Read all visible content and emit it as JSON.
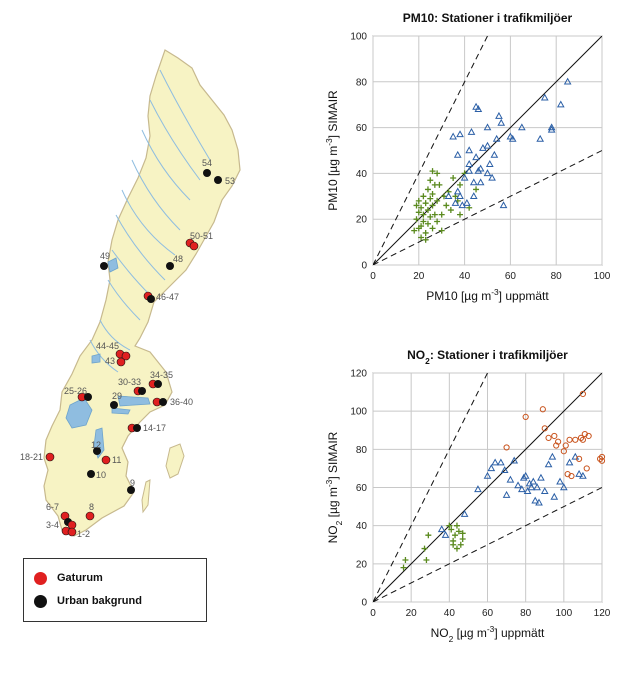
{
  "map": {
    "legend": {
      "items": [
        {
          "label": "Gaturum",
          "color": "#e02020"
        },
        {
          "label": "Urban bakgrund",
          "color": "#111111"
        }
      ]
    },
    "station_labels": [
      "54",
      "53",
      "50-51",
      "49",
      "48",
      "46-47",
      "44-45",
      "43",
      "34-35",
      "30-33",
      "25-26",
      "29",
      "36-40",
      "14-17",
      "12",
      "18-21",
      "11",
      "10",
      "9",
      "6-7",
      "8",
      "3-4",
      "1-2"
    ]
  },
  "chart_data": [
    {
      "type": "scatter",
      "title": "PM10: Stationer i trafikmiljöer",
      "xlabel": "PM10 [µg m-3] uppmätt",
      "ylabel": "PM10 [µg m-3] SIMAIR",
      "xlim": [
        0,
        100
      ],
      "ylim": [
        0,
        100
      ],
      "xticks": [
        0,
        20,
        40,
        60,
        80,
        100
      ],
      "yticks": [
        0,
        20,
        40,
        60,
        80,
        100
      ],
      "grid": true,
      "reference_lines": [
        {
          "style": "solid",
          "slope": 1
        },
        {
          "style": "dashed",
          "slope": 2
        },
        {
          "style": "dashed",
          "slope": 0.5
        }
      ],
      "series": [
        {
          "marker": "plus",
          "color": "#5a8a1e",
          "points": [
            [
              18,
              15
            ],
            [
              19,
              20
            ],
            [
              20,
              23
            ],
            [
              20,
              28
            ],
            [
              21,
              17
            ],
            [
              21,
              25
            ],
            [
              22,
              19
            ],
            [
              22,
              22
            ],
            [
              22,
              30
            ],
            [
              23,
              14
            ],
            [
              23,
              27
            ],
            [
              24,
              18
            ],
            [
              24,
              24
            ],
            [
              24,
              33
            ],
            [
              25,
              21
            ],
            [
              25,
              29
            ],
            [
              25,
              37
            ],
            [
              26,
              16
            ],
            [
              26,
              26
            ],
            [
              26,
              31
            ],
            [
              27,
              22
            ],
            [
              27,
              35
            ],
            [
              28,
              19
            ],
            [
              28,
              28
            ],
            [
              28,
              40
            ],
            [
              30,
              22
            ],
            [
              31,
              30
            ],
            [
              32,
              26
            ],
            [
              33,
              32
            ],
            [
              34,
              24
            ],
            [
              35,
              38
            ],
            [
              36,
              30
            ],
            [
              37,
              28
            ],
            [
              38,
              35
            ],
            [
              40,
              40
            ],
            [
              42,
              25
            ],
            [
              45,
              33
            ],
            [
              20,
              16
            ],
            [
              21,
              12
            ],
            [
              23,
              11
            ],
            [
              19,
              26
            ],
            [
              26,
              41
            ],
            [
              29,
              35
            ],
            [
              30,
              15
            ],
            [
              38,
              22
            ]
          ]
        },
        {
          "marker": "triangle",
          "color": "#2b5fa6",
          "points": [
            [
              33,
              30
            ],
            [
              35,
              56
            ],
            [
              36,
              27
            ],
            [
              37,
              48
            ],
            [
              38,
              30
            ],
            [
              38,
              57
            ],
            [
              39,
              26
            ],
            [
              40,
              38
            ],
            [
              41,
              27
            ],
            [
              42,
              44
            ],
            [
              42,
              50
            ],
            [
              43,
              58
            ],
            [
              44,
              30
            ],
            [
              44,
              36
            ],
            [
              45,
              47
            ],
            [
              45,
              69
            ],
            [
              46,
              41
            ],
            [
              46,
              68
            ],
            [
              47,
              42
            ],
            [
              48,
              51
            ],
            [
              50,
              52
            ],
            [
              50,
              40
            ],
            [
              51,
              44
            ],
            [
              52,
              38
            ],
            [
              53,
              48
            ],
            [
              54,
              55
            ],
            [
              55,
              65
            ],
            [
              56,
              62
            ],
            [
              57,
              26
            ],
            [
              60,
              56
            ],
            [
              61,
              55
            ],
            [
              65,
              60
            ],
            [
              73,
              55
            ],
            [
              75,
              73
            ],
            [
              78,
              60
            ],
            [
              78,
              59
            ],
            [
              82,
              70
            ],
            [
              85,
              80
            ],
            [
              37,
              32
            ],
            [
              42,
              41
            ],
            [
              47,
              36
            ],
            [
              50,
              60
            ]
          ]
        }
      ]
    },
    {
      "type": "scatter",
      "title": "NO2: Stationer i trafikmiljöer",
      "xlabel": "NO2 [µg m-3] uppmätt",
      "ylabel": "NO2 [µg m-3] SIMAIR",
      "xlim": [
        0,
        120
      ],
      "ylim": [
        0,
        120
      ],
      "xticks": [
        0,
        20,
        40,
        60,
        80,
        100,
        120
      ],
      "yticks": [
        0,
        20,
        40,
        60,
        80,
        100,
        120
      ],
      "grid": true,
      "reference_lines": [
        {
          "style": "solid",
          "slope": 1
        },
        {
          "style": "dashed",
          "slope": 2
        },
        {
          "style": "dashed",
          "slope": 0.5
        }
      ],
      "series": [
        {
          "marker": "plus",
          "color": "#5a8a1e",
          "points": [
            [
              16,
              18
            ],
            [
              17,
              22
            ],
            [
              27,
              28
            ],
            [
              28,
              22
            ],
            [
              29,
              35
            ],
            [
              40,
              40
            ],
            [
              41,
              38
            ],
            [
              42,
              32
            ],
            [
              43,
              35
            ],
            [
              44,
              28
            ],
            [
              45,
              37
            ],
            [
              46,
              30
            ],
            [
              47,
              36
            ],
            [
              47,
              33
            ],
            [
              44,
              40
            ],
            [
              42,
              30
            ]
          ]
        },
        {
          "marker": "triangle",
          "color": "#2b5fa6",
          "points": [
            [
              36,
              38
            ],
            [
              38,
              35
            ],
            [
              48,
              46
            ],
            [
              55,
              59
            ],
            [
              60,
              66
            ],
            [
              62,
              70
            ],
            [
              64,
              73
            ],
            [
              67,
              73
            ],
            [
              69,
              69
            ],
            [
              70,
              56
            ],
            [
              72,
              64
            ],
            [
              74,
              74
            ],
            [
              76,
              61
            ],
            [
              78,
              59
            ],
            [
              79,
              65
            ],
            [
              80,
              66
            ],
            [
              81,
              58
            ],
            [
              82,
              62
            ],
            [
              83,
              60
            ],
            [
              84,
              63
            ],
            [
              85,
              53
            ],
            [
              86,
              60
            ],
            [
              87,
              52
            ],
            [
              88,
              65
            ],
            [
              90,
              58
            ],
            [
              92,
              72
            ],
            [
              94,
              76
            ],
            [
              95,
              55
            ],
            [
              98,
              63
            ],
            [
              100,
              60
            ],
            [
              103,
              73
            ],
            [
              106,
              76
            ],
            [
              108,
              67
            ],
            [
              110,
              66
            ]
          ]
        },
        {
          "marker": "circle",
          "color": "#c9541e",
          "points": [
            [
              70,
              81
            ],
            [
              80,
              97
            ],
            [
              89,
              101
            ],
            [
              90,
              91
            ],
            [
              92,
              86
            ],
            [
              95,
              87
            ],
            [
              96,
              82
            ],
            [
              97,
              84
            ],
            [
              100,
              79
            ],
            [
              101,
              82
            ],
            [
              102,
              67
            ],
            [
              103,
              85
            ],
            [
              104,
              66
            ],
            [
              106,
              85
            ],
            [
              108,
              75
            ],
            [
              109,
              86
            ],
            [
              110,
              109
            ],
            [
              110,
              85
            ],
            [
              111,
              88
            ],
            [
              112,
              70
            ],
            [
              113,
              87
            ],
            [
              119,
              75
            ],
            [
              120,
              74
            ],
            [
              120,
              76
            ]
          ]
        }
      ]
    }
  ]
}
